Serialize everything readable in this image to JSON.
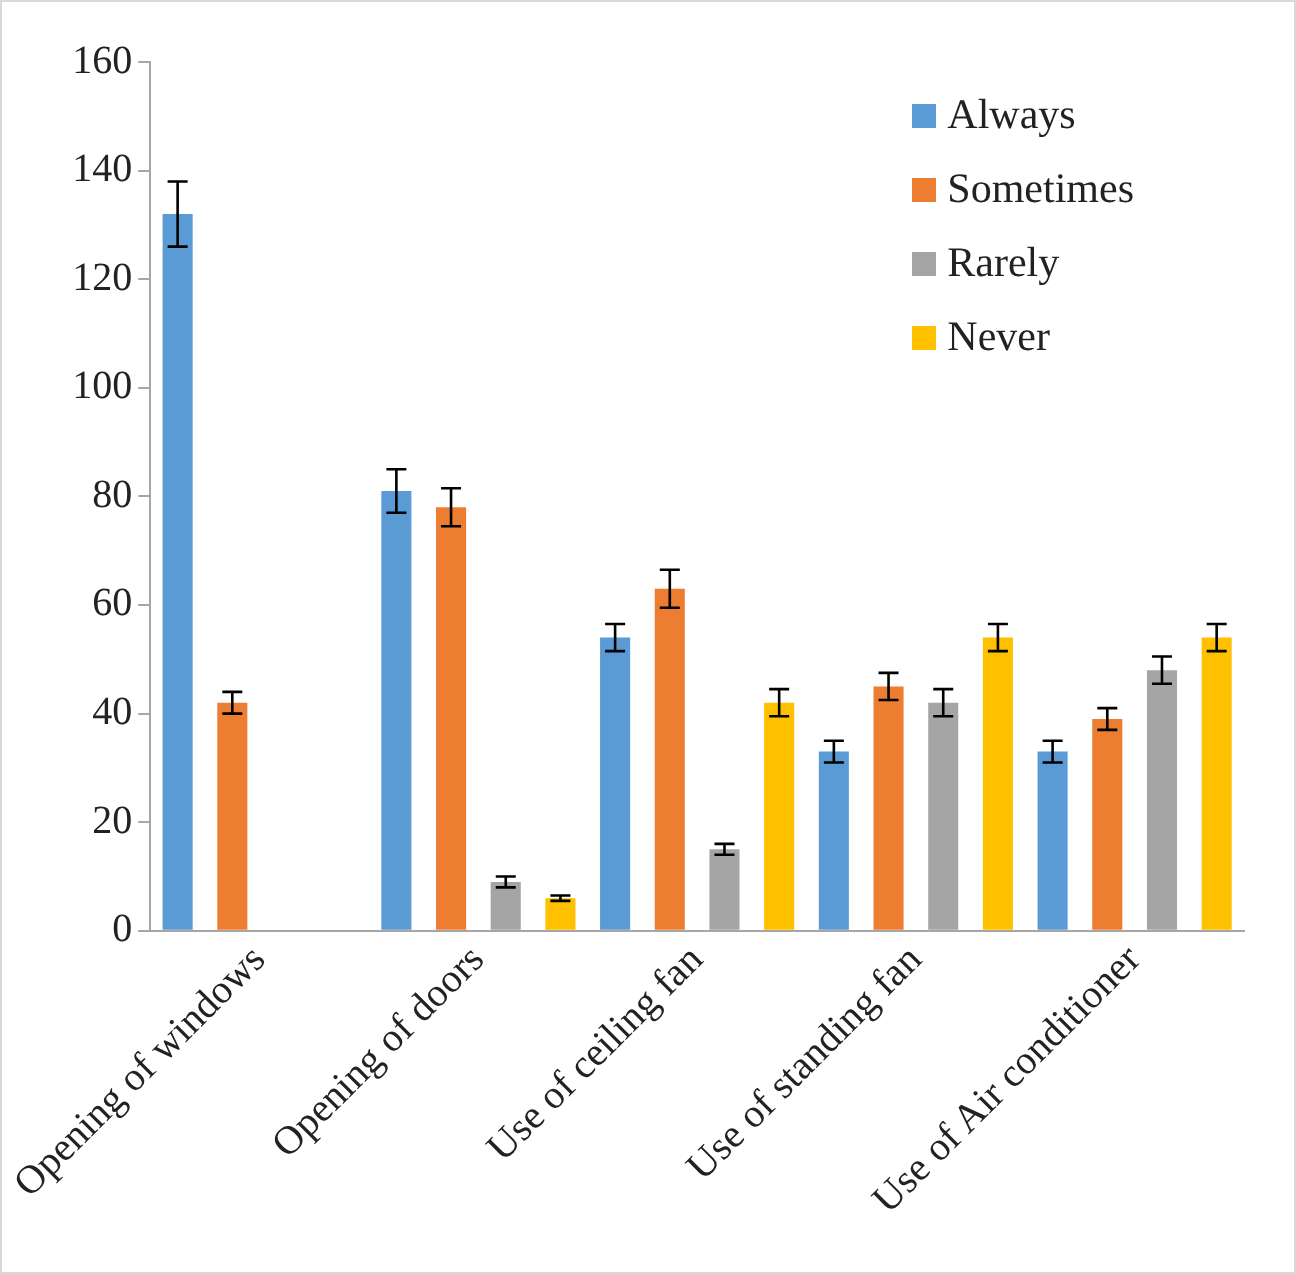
{
  "chart_data": {
    "type": "bar",
    "categories": [
      "Opening of windows",
      "Opening of doors",
      "Use of ceiling fan",
      "Use of standing fan",
      "Use of Air conditioner"
    ],
    "series": [
      {
        "name": "Always",
        "color": "#5b9bd5",
        "values": [
          132,
          81,
          54,
          33,
          33
        ],
        "errors": [
          6,
          4,
          2.5,
          2,
          2
        ]
      },
      {
        "name": "Sometimes",
        "color": "#ed7d31",
        "values": [
          42,
          78,
          63,
          45,
          39
        ],
        "errors": [
          2,
          3.5,
          3.5,
          2.5,
          2
        ]
      },
      {
        "name": "Rarely",
        "color": "#a5a5a5",
        "values": [
          null,
          9,
          15,
          42,
          48
        ],
        "errors": [
          null,
          1,
          1,
          2.5,
          2.5
        ]
      },
      {
        "name": "Never",
        "color": "#ffc000",
        "values": [
          null,
          6,
          42,
          54,
          54
        ],
        "errors": [
          null,
          0.5,
          2.5,
          2.5,
          2.5
        ]
      }
    ],
    "ylim": [
      0,
      160
    ],
    "yticks": [
      0,
      20,
      40,
      60,
      80,
      100,
      120,
      140,
      160
    ],
    "grid": false,
    "legend": "top right"
  }
}
